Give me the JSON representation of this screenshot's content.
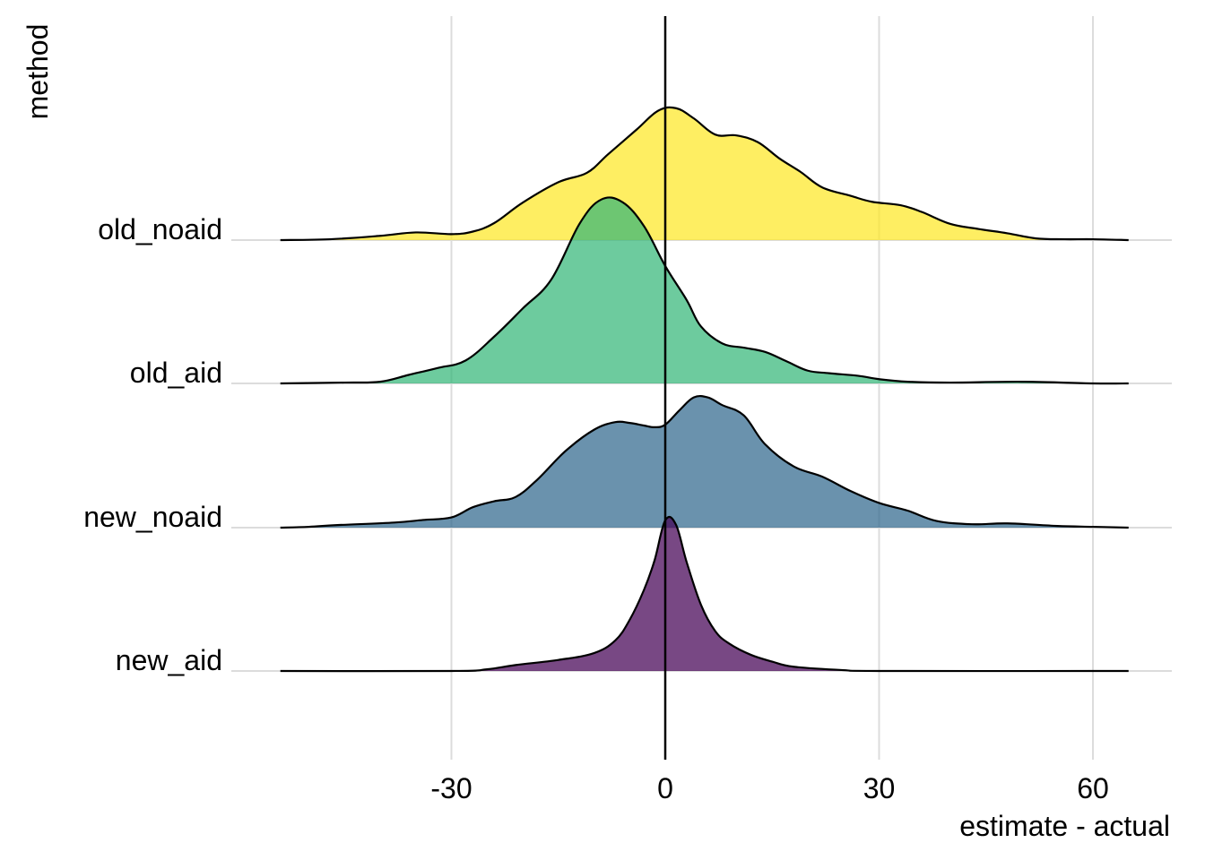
{
  "chart_data": {
    "type": "ridgeline",
    "xlabel": "estimate - actual",
    "ylabel": "method",
    "xlim": [
      -54,
      71
    ],
    "x_ticks": [
      -30,
      0,
      30,
      60
    ],
    "x_tick_labels": [
      "-30",
      "0",
      "30",
      "60"
    ],
    "categories": [
      "old_noaid",
      "old_aid",
      "new_noaid",
      "new_aid"
    ],
    "reference_line_x": 0,
    "grid": true,
    "legend": "none",
    "series": [
      {
        "name": "new_aid",
        "color": "#440154",
        "density": [
          [
            -54,
            0
          ],
          [
            -30,
            0
          ],
          [
            -25,
            0.02
          ],
          [
            -21,
            0.07
          ],
          [
            -15,
            0.13
          ],
          [
            -10,
            0.21
          ],
          [
            -7,
            0.36
          ],
          [
            -5,
            0.6
          ],
          [
            -3,
            0.95
          ],
          [
            -1.5,
            1.3
          ],
          [
            0,
            1.77
          ],
          [
            1.5,
            1.72
          ],
          [
            3,
            1.28
          ],
          [
            5,
            0.78
          ],
          [
            7,
            0.47
          ],
          [
            9,
            0.32
          ],
          [
            12,
            0.19
          ],
          [
            15,
            0.11
          ],
          [
            18,
            0.05
          ],
          [
            25,
            0.01
          ],
          [
            30,
            0
          ],
          [
            60,
            0
          ],
          [
            65,
            0
          ]
        ]
      },
      {
        "name": "new_noaid",
        "color": "#31688e",
        "density": [
          [
            -54,
            0
          ],
          [
            -50,
            0.01
          ],
          [
            -46,
            0.03
          ],
          [
            -38,
            0.06
          ],
          [
            -34,
            0.09
          ],
          [
            -30,
            0.12
          ],
          [
            -27,
            0.24
          ],
          [
            -24,
            0.31
          ],
          [
            -21,
            0.36
          ],
          [
            -18,
            0.56
          ],
          [
            -14,
            0.9
          ],
          [
            -10,
            1.15
          ],
          [
            -7,
            1.24
          ],
          [
            -5,
            1.23
          ],
          [
            -3,
            1.2
          ],
          [
            -1.5,
            1.18
          ],
          [
            0,
            1.21
          ],
          [
            2,
            1.38
          ],
          [
            4,
            1.53
          ],
          [
            6,
            1.53
          ],
          [
            8,
            1.44
          ],
          [
            11,
            1.32
          ],
          [
            14,
            0.98
          ],
          [
            18,
            0.72
          ],
          [
            22,
            0.6
          ],
          [
            26,
            0.43
          ],
          [
            30,
            0.29
          ],
          [
            34,
            0.2
          ],
          [
            38,
            0.08
          ],
          [
            43,
            0.04
          ],
          [
            48,
            0.05
          ],
          [
            55,
            0.02
          ],
          [
            60,
            0.01
          ],
          [
            65,
            0
          ]
        ]
      },
      {
        "name": "old_aid",
        "color": "#35b779",
        "density": [
          [
            -54,
            0
          ],
          [
            -45,
            0.01
          ],
          [
            -40,
            0.02
          ],
          [
            -36,
            0.1
          ],
          [
            -32,
            0.18
          ],
          [
            -28,
            0.27
          ],
          [
            -24,
            0.55
          ],
          [
            -20,
            0.88
          ],
          [
            -16,
            1.22
          ],
          [
            -12,
            1.88
          ],
          [
            -9,
            2.16
          ],
          [
            -6,
            2.13
          ],
          [
            -3,
            1.85
          ],
          [
            0,
            1.38
          ],
          [
            3,
            0.98
          ],
          [
            5,
            0.67
          ],
          [
            8,
            0.47
          ],
          [
            11,
            0.42
          ],
          [
            14,
            0.37
          ],
          [
            17,
            0.26
          ],
          [
            20,
            0.15
          ],
          [
            23,
            0.12
          ],
          [
            27,
            0.09
          ],
          [
            30,
            0.05
          ],
          [
            34,
            0.02
          ],
          [
            40,
            0.01
          ],
          [
            50,
            0.02
          ],
          [
            60,
            0
          ],
          [
            65,
            0
          ]
        ]
      },
      {
        "name": "old_noaid",
        "color": "#fde725",
        "density": [
          [
            -54,
            0
          ],
          [
            -47,
            0.01
          ],
          [
            -40,
            0.05
          ],
          [
            -35,
            0.09
          ],
          [
            -30,
            0.07
          ],
          [
            -27,
            0.1
          ],
          [
            -24,
            0.2
          ],
          [
            -20,
            0.44
          ],
          [
            -15,
            0.68
          ],
          [
            -11,
            0.79
          ],
          [
            -8,
            1.01
          ],
          [
            -4,
            1.3
          ],
          [
            -1,
            1.52
          ],
          [
            1.5,
            1.55
          ],
          [
            4,
            1.43
          ],
          [
            7,
            1.24
          ],
          [
            10,
            1.23
          ],
          [
            13,
            1.15
          ],
          [
            16,
            0.96
          ],
          [
            19,
            0.8
          ],
          [
            22,
            0.62
          ],
          [
            26,
            0.52
          ],
          [
            29,
            0.45
          ],
          [
            33,
            0.41
          ],
          [
            36,
            0.33
          ],
          [
            40,
            0.19
          ],
          [
            44,
            0.13
          ],
          [
            48,
            0.08
          ],
          [
            52,
            0.02
          ],
          [
            56,
            0.01
          ],
          [
            60,
            0.01
          ],
          [
            65,
            0
          ]
        ]
      }
    ]
  }
}
